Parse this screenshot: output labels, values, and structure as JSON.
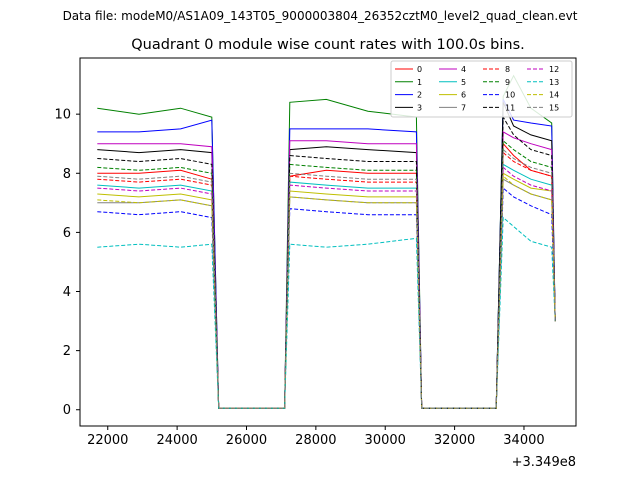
{
  "header": {
    "suptitle": "Data file: modeM0/AS1A09_143T05_9000003804_26352cztM0_level2_quad_clean.evt"
  },
  "chart_data": {
    "type": "line",
    "title": "Quadrant 0 module wise count rates with 100.0s bins.",
    "xlabel": "",
    "ylabel": "",
    "x_offset_label": "+3.349e8",
    "xlim": [
      21200,
      35500
    ],
    "ylim": [
      -0.55,
      11.9
    ],
    "xticks": [
      22000,
      24000,
      26000,
      28000,
      30000,
      32000,
      34000
    ],
    "yticks": [
      0,
      2,
      4,
      6,
      8,
      10
    ],
    "grid": false,
    "legend_position": "top-right",
    "x_points": [
      21700,
      22900,
      24100,
      25000,
      25200,
      26000,
      27100,
      27250,
      28300,
      29500,
      30900,
      31050,
      32000,
      33200,
      33400,
      33700,
      34200,
      34800,
      34900
    ],
    "series": [
      {
        "name": "0",
        "color": "#ff0000",
        "style": "solid",
        "values": [
          8.0,
          8.0,
          8.1,
          7.8,
          0.05,
          0.05,
          0.05,
          7.9,
          8.1,
          8.0,
          8.0,
          0.05,
          0.05,
          0.05,
          9.0,
          8.6,
          8.1,
          7.9,
          3.0
        ]
      },
      {
        "name": "1",
        "color": "#008000",
        "style": "solid",
        "values": [
          10.2,
          10.0,
          10.2,
          9.9,
          0.05,
          0.05,
          0.05,
          10.4,
          10.5,
          10.1,
          9.9,
          0.05,
          0.05,
          0.05,
          10.6,
          11.3,
          10.2,
          9.7,
          3.0
        ]
      },
      {
        "name": "2",
        "color": "#0000ff",
        "style": "solid",
        "values": [
          9.4,
          9.4,
          9.5,
          9.8,
          0.05,
          0.05,
          0.05,
          9.5,
          9.5,
          9.5,
          9.4,
          0.05,
          0.05,
          0.05,
          10.5,
          9.8,
          9.7,
          9.6,
          3.0
        ]
      },
      {
        "name": "3",
        "color": "#000000",
        "style": "solid",
        "values": [
          8.8,
          8.7,
          8.8,
          8.7,
          0.05,
          0.05,
          0.05,
          8.8,
          8.9,
          8.8,
          8.7,
          0.05,
          0.05,
          0.05,
          10.4,
          9.6,
          9.3,
          9.1,
          3.0
        ]
      },
      {
        "name": "4",
        "color": "#bf00bf",
        "style": "solid",
        "values": [
          9.0,
          9.0,
          9.0,
          8.9,
          0.05,
          0.05,
          0.05,
          9.1,
          9.1,
          9.0,
          9.0,
          0.05,
          0.05,
          0.05,
          9.4,
          9.2,
          9.0,
          8.8,
          3.0
        ]
      },
      {
        "name": "5",
        "color": "#00bfbf",
        "style": "solid",
        "values": [
          7.6,
          7.5,
          7.6,
          7.4,
          0.05,
          0.05,
          0.05,
          7.7,
          7.6,
          7.5,
          7.5,
          0.05,
          0.05,
          0.05,
          8.3,
          8.1,
          7.8,
          7.6,
          3.0
        ]
      },
      {
        "name": "6",
        "color": "#bfbf00",
        "style": "solid",
        "values": [
          7.3,
          7.2,
          7.3,
          7.1,
          0.05,
          0.05,
          0.05,
          7.4,
          7.3,
          7.2,
          7.2,
          0.05,
          0.05,
          0.05,
          8.0,
          7.8,
          7.5,
          7.4,
          3.0
        ]
      },
      {
        "name": "7",
        "color": "#808080",
        "style": "solid",
        "values": [
          7.0,
          7.0,
          7.1,
          6.9,
          0.05,
          0.05,
          0.05,
          7.2,
          7.1,
          7.0,
          7.0,
          0.05,
          0.05,
          0.05,
          7.8,
          7.6,
          7.3,
          7.1,
          3.0
        ]
      },
      {
        "name": "8",
        "color": "#ff0000",
        "style": "dashed",
        "values": [
          7.8,
          7.7,
          7.8,
          7.6,
          0.05,
          0.05,
          0.05,
          7.9,
          7.8,
          7.7,
          7.7,
          0.05,
          0.05,
          0.05,
          8.7,
          8.4,
          8.1,
          7.9,
          3.0
        ]
      },
      {
        "name": "9",
        "color": "#008000",
        "style": "dashed",
        "values": [
          8.2,
          8.1,
          8.2,
          8.0,
          0.05,
          0.05,
          0.05,
          8.3,
          8.2,
          8.1,
          8.1,
          0.05,
          0.05,
          0.05,
          9.1,
          8.8,
          8.4,
          8.2,
          3.0
        ]
      },
      {
        "name": "10",
        "color": "#0000ff",
        "style": "dashed",
        "values": [
          6.7,
          6.6,
          6.7,
          6.5,
          0.05,
          0.05,
          0.05,
          6.8,
          6.7,
          6.6,
          6.6,
          0.05,
          0.05,
          0.05,
          7.5,
          7.2,
          6.9,
          6.6,
          3.0
        ]
      },
      {
        "name": "11",
        "color": "#000000",
        "style": "dashed",
        "values": [
          8.5,
          8.4,
          8.5,
          8.3,
          0.05,
          0.05,
          0.05,
          8.6,
          8.5,
          8.4,
          8.4,
          0.05,
          0.05,
          0.05,
          9.9,
          9.3,
          8.8,
          8.6,
          3.0
        ]
      },
      {
        "name": "12",
        "color": "#bf00bf",
        "style": "dashed",
        "values": [
          7.5,
          7.4,
          7.5,
          7.3,
          0.05,
          0.05,
          0.05,
          7.6,
          7.5,
          7.4,
          7.4,
          0.05,
          0.05,
          0.05,
          8.2,
          7.9,
          7.6,
          7.4,
          3.0
        ]
      },
      {
        "name": "13",
        "color": "#00bfbf",
        "style": "dashed",
        "values": [
          5.5,
          5.6,
          5.5,
          5.6,
          0.05,
          0.05,
          0.05,
          5.6,
          5.5,
          5.6,
          5.8,
          0.05,
          0.05,
          0.05,
          6.5,
          6.2,
          5.7,
          5.5,
          3.0
        ]
      },
      {
        "name": "14",
        "color": "#bfbf00",
        "style": "dashed",
        "values": [
          7.1,
          7.0,
          7.1,
          6.9,
          0.05,
          0.05,
          0.05,
          7.2,
          7.1,
          7.0,
          7.0,
          0.05,
          0.05,
          0.05,
          7.9,
          7.6,
          7.3,
          7.1,
          3.0
        ]
      },
      {
        "name": "15",
        "color": "#808080",
        "style": "dashed",
        "values": [
          7.9,
          7.8,
          7.9,
          7.7,
          0.05,
          0.05,
          0.05,
          8.0,
          7.9,
          7.8,
          7.8,
          0.05,
          0.05,
          0.05,
          8.8,
          8.5,
          8.2,
          8.0,
          3.0
        ]
      }
    ]
  }
}
